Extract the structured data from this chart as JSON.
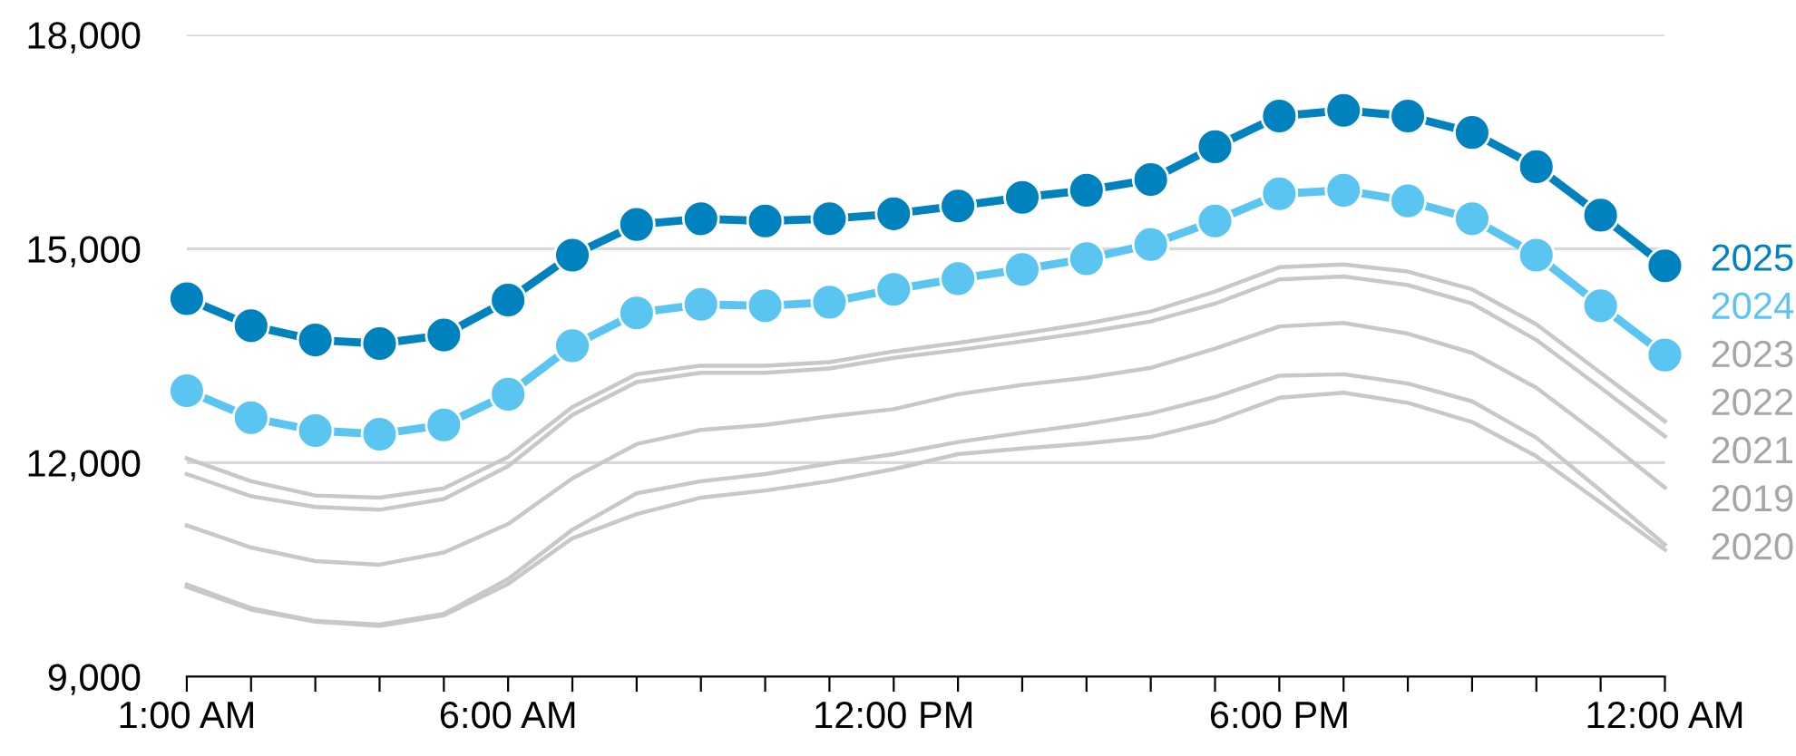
{
  "chart_data": {
    "type": "line",
    "categories": [
      "1:00 AM",
      null,
      null,
      null,
      null,
      "6:00 AM",
      null,
      null,
      null,
      null,
      null,
      "12:00 PM",
      null,
      null,
      null,
      null,
      null,
      "6:00 PM",
      null,
      null,
      null,
      null,
      null,
      "12:00 AM"
    ],
    "series": [
      {
        "name": "2020",
        "color": "#c8c8c8",
        "marker": "none",
        "values": [
          10260,
          9940,
          9770,
          9710,
          9860,
          10300,
          10940,
          11280,
          11510,
          11610,
          11740,
          11910,
          12120,
          12200,
          12270,
          12360,
          12580,
          12910,
          12980,
          12840,
          12570,
          12090,
          11440,
          10780
        ]
      },
      {
        "name": "2019",
        "color": "#c8c8c8",
        "marker": "none",
        "values": [
          10290,
          9960,
          9780,
          9730,
          9880,
          10370,
          11060,
          11570,
          11740,
          11840,
          11990,
          12120,
          12290,
          12420,
          12540,
          12690,
          12920,
          13220,
          13240,
          13110,
          12860,
          12350,
          11610,
          10850
        ]
      },
      {
        "name": "2021",
        "color": "#c8c8c8",
        "marker": "none",
        "values": [
          11120,
          10810,
          10620,
          10570,
          10740,
          11140,
          11780,
          12260,
          12460,
          12530,
          12650,
          12750,
          12960,
          13090,
          13190,
          13330,
          13600,
          13910,
          13960,
          13810,
          13540,
          13050,
          12370,
          11650
        ]
      },
      {
        "name": "2022",
        "color": "#c8c8c8",
        "marker": "none",
        "values": [
          11840,
          11530,
          11380,
          11340,
          11490,
          11950,
          12670,
          13130,
          13260,
          13260,
          13320,
          13470,
          13580,
          13700,
          13830,
          13980,
          14230,
          14570,
          14610,
          14490,
          14230,
          13720,
          13050,
          12370
        ]
      },
      {
        "name": "2023",
        "color": "#c8c8c8",
        "marker": "none",
        "values": [
          12060,
          11740,
          11540,
          11510,
          11640,
          12080,
          12780,
          13240,
          13360,
          13360,
          13410,
          13560,
          13680,
          13810,
          13950,
          14120,
          14400,
          14740,
          14780,
          14680,
          14430,
          13940,
          13260,
          12580
        ]
      },
      {
        "name": "2024",
        "color": "#5bc5f2",
        "marker": "circle",
        "values": [
          13010,
          12630,
          12450,
          12400,
          12530,
          12960,
          13640,
          14100,
          14220,
          14200,
          14250,
          14430,
          14580,
          14710,
          14860,
          15060,
          15390,
          15770,
          15820,
          15670,
          15420,
          14910,
          14200,
          13510
        ]
      },
      {
        "name": "2025",
        "color": "#0082be",
        "marker": "circle",
        "values": [
          14300,
          13920,
          13720,
          13670,
          13790,
          14280,
          14910,
          15340,
          15420,
          15390,
          15420,
          15490,
          15600,
          15720,
          15820,
          15970,
          16430,
          16860,
          16940,
          16860,
          16630,
          16150,
          15470,
          14760
        ]
      }
    ],
    "ylim": [
      9000,
      18000
    ],
    "yticks": [
      {
        "value": 9000,
        "label": "9,000"
      },
      {
        "value": 12000,
        "label": "12,000"
      },
      {
        "value": 15000,
        "label": "15,000"
      },
      {
        "value": 18000,
        "label": "18,000"
      }
    ],
    "grid": "y",
    "legend": false,
    "line_style": "solid"
  }
}
